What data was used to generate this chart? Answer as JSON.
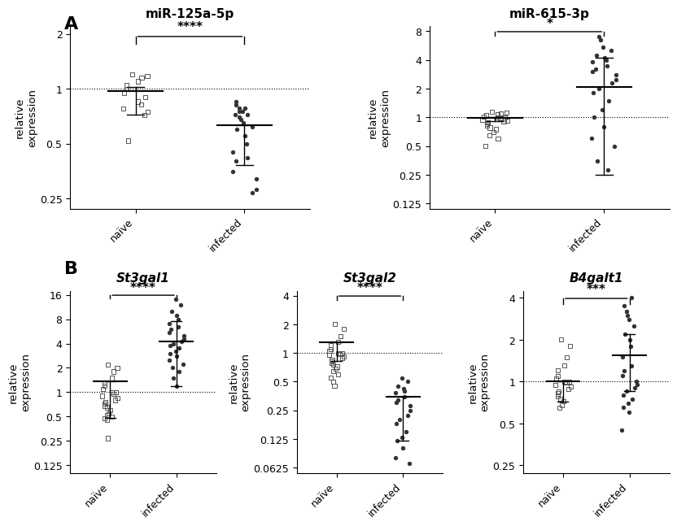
{
  "panel_A": {
    "plots": [
      {
        "title": "miR-125a-5p",
        "title_style": "normal",
        "significance": "****",
        "yticks": [
          0.25,
          0.5,
          1.0,
          2.0
        ],
        "ymin": 0.22,
        "ymax": 2.2,
        "dotted_line": 1.0,
        "naive_data": [
          1.2,
          1.18,
          1.15,
          1.1,
          1.05,
          1.0,
          0.95,
          0.9,
          0.85,
          0.82,
          0.78,
          0.75,
          0.72,
          0.52
        ],
        "naive_mean": 0.97,
        "naive_sd_low": 0.72,
        "naive_sd_high": 1.02,
        "infected_data": [
          0.85,
          0.82,
          0.78,
          0.78,
          0.75,
          0.75,
          0.72,
          0.72,
          0.7,
          0.68,
          0.65,
          0.62,
          0.6,
          0.55,
          0.5,
          0.45,
          0.42,
          0.4,
          0.35,
          0.32,
          0.28,
          0.27
        ],
        "infected_mean": 0.63,
        "infected_sd_low": 0.38,
        "infected_sd_high": 0.63
      },
      {
        "title": "miR-615-3p",
        "title_style": "normal",
        "significance": "*",
        "yticks": [
          0.125,
          0.25,
          0.5,
          1.0,
          2.0,
          4.0,
          8.0
        ],
        "ymin": 0.11,
        "ymax": 9.0,
        "dotted_line": 1.0,
        "naive_data": [
          1.15,
          1.12,
          1.1,
          1.08,
          1.05,
          1.05,
          1.02,
          1.0,
          1.0,
          0.98,
          0.95,
          0.92,
          0.9,
          0.88,
          0.85,
          0.82,
          0.78,
          0.75,
          0.7,
          0.65,
          0.6,
          0.5
        ],
        "naive_mean": 0.98,
        "naive_sd_low": 0.92,
        "naive_sd_high": 1.0,
        "infected_data": [
          7.0,
          6.5,
          5.5,
          5.0,
          4.5,
          4.2,
          4.0,
          3.8,
          3.5,
          3.2,
          3.0,
          2.8,
          2.5,
          2.3,
          2.0,
          1.8,
          1.5,
          1.2,
          1.0,
          0.8,
          0.6,
          0.5,
          0.35,
          0.28
        ],
        "infected_mean": 2.1,
        "infected_sd_low": 0.25,
        "infected_sd_high": 4.2
      }
    ]
  },
  "panel_B": {
    "plots": [
      {
        "title": "St3gal1",
        "title_style": "italic",
        "significance": "****",
        "yticks": [
          0.125,
          0.25,
          0.5,
          1.0,
          2.0,
          4.0,
          8.0,
          16.0
        ],
        "ymin": 0.1,
        "ymax": 18.0,
        "dotted_line": 1.0,
        "naive_data": [
          2.2,
          2.0,
          1.8,
          1.5,
          1.3,
          1.2,
          1.1,
          1.0,
          1.0,
          0.95,
          0.9,
          0.85,
          0.8,
          0.75,
          0.72,
          0.68,
          0.65,
          0.6,
          0.55,
          0.52,
          0.5,
          0.48,
          0.45,
          0.27
        ],
        "naive_mean": 1.35,
        "naive_sd_low": 0.48,
        "naive_sd_high": 1.35,
        "infected_data": [
          14.0,
          12.0,
          10.0,
          9.0,
          8.0,
          7.0,
          6.5,
          6.0,
          5.5,
          5.0,
          4.5,
          4.2,
          4.0,
          3.8,
          3.5,
          3.2,
          3.0,
          2.8,
          2.5,
          2.2,
          2.0,
          1.8,
          1.5,
          1.2
        ],
        "infected_mean": 4.2,
        "infected_sd_low": 1.2,
        "infected_sd_high": 7.5
      },
      {
        "title": "St3gal2",
        "title_style": "italic",
        "significance": "****",
        "yticks": [
          0.0625,
          0.125,
          0.25,
          0.5,
          1.0,
          2.0,
          4.0
        ],
        "ymin": 0.055,
        "ymax": 4.5,
        "dotted_line": 1.0,
        "naive_data": [
          2.0,
          1.8,
          1.5,
          1.3,
          1.2,
          1.1,
          1.05,
          1.0,
          1.0,
          0.98,
          0.95,
          0.92,
          0.88,
          0.85,
          0.82,
          0.78,
          0.75,
          0.72,
          0.68,
          0.65,
          0.6,
          0.55,
          0.5,
          0.45
        ],
        "naive_mean": 1.3,
        "naive_sd_low": 0.82,
        "naive_sd_high": 1.3,
        "infected_data": [
          0.55,
          0.5,
          0.45,
          0.42,
          0.4,
          0.38,
          0.35,
          0.32,
          0.3,
          0.28,
          0.25,
          0.22,
          0.2,
          0.18,
          0.15,
          0.13,
          0.12,
          0.1,
          0.08,
          0.07
        ],
        "infected_mean": 0.35,
        "infected_sd_low": 0.12,
        "infected_sd_high": 0.35
      },
      {
        "title": "B4galt1",
        "title_style": "italic",
        "significance": "***",
        "yticks": [
          0.25,
          0.5,
          1.0,
          2.0,
          4.0
        ],
        "ymin": 0.22,
        "ymax": 4.5,
        "dotted_line": 1.0,
        "naive_data": [
          2.0,
          1.8,
          1.5,
          1.3,
          1.2,
          1.1,
          1.05,
          1.0,
          1.0,
          0.98,
          0.95,
          0.92,
          0.88,
          0.85,
          0.82,
          0.78,
          0.75,
          0.72,
          0.68,
          0.65
        ],
        "naive_mean": 1.0,
        "naive_sd_low": 0.72,
        "naive_sd_high": 1.0,
        "infected_data": [
          4.0,
          3.5,
          3.2,
          3.0,
          2.8,
          2.5,
          2.2,
          2.0,
          1.8,
          1.5,
          1.3,
          1.2,
          1.1,
          1.0,
          0.95,
          0.9,
          0.85,
          0.8,
          0.75,
          0.7,
          0.65,
          0.6,
          0.45
        ],
        "infected_mean": 1.55,
        "infected_sd_low": 0.85,
        "infected_sd_high": 2.2
      }
    ]
  },
  "naive_marker": "s",
  "infected_marker": "o",
  "marker_size": 4,
  "naive_color": "#808080",
  "infected_color": "#404040",
  "mean_line_color": "#000000",
  "sig_bar_color": "#000000"
}
